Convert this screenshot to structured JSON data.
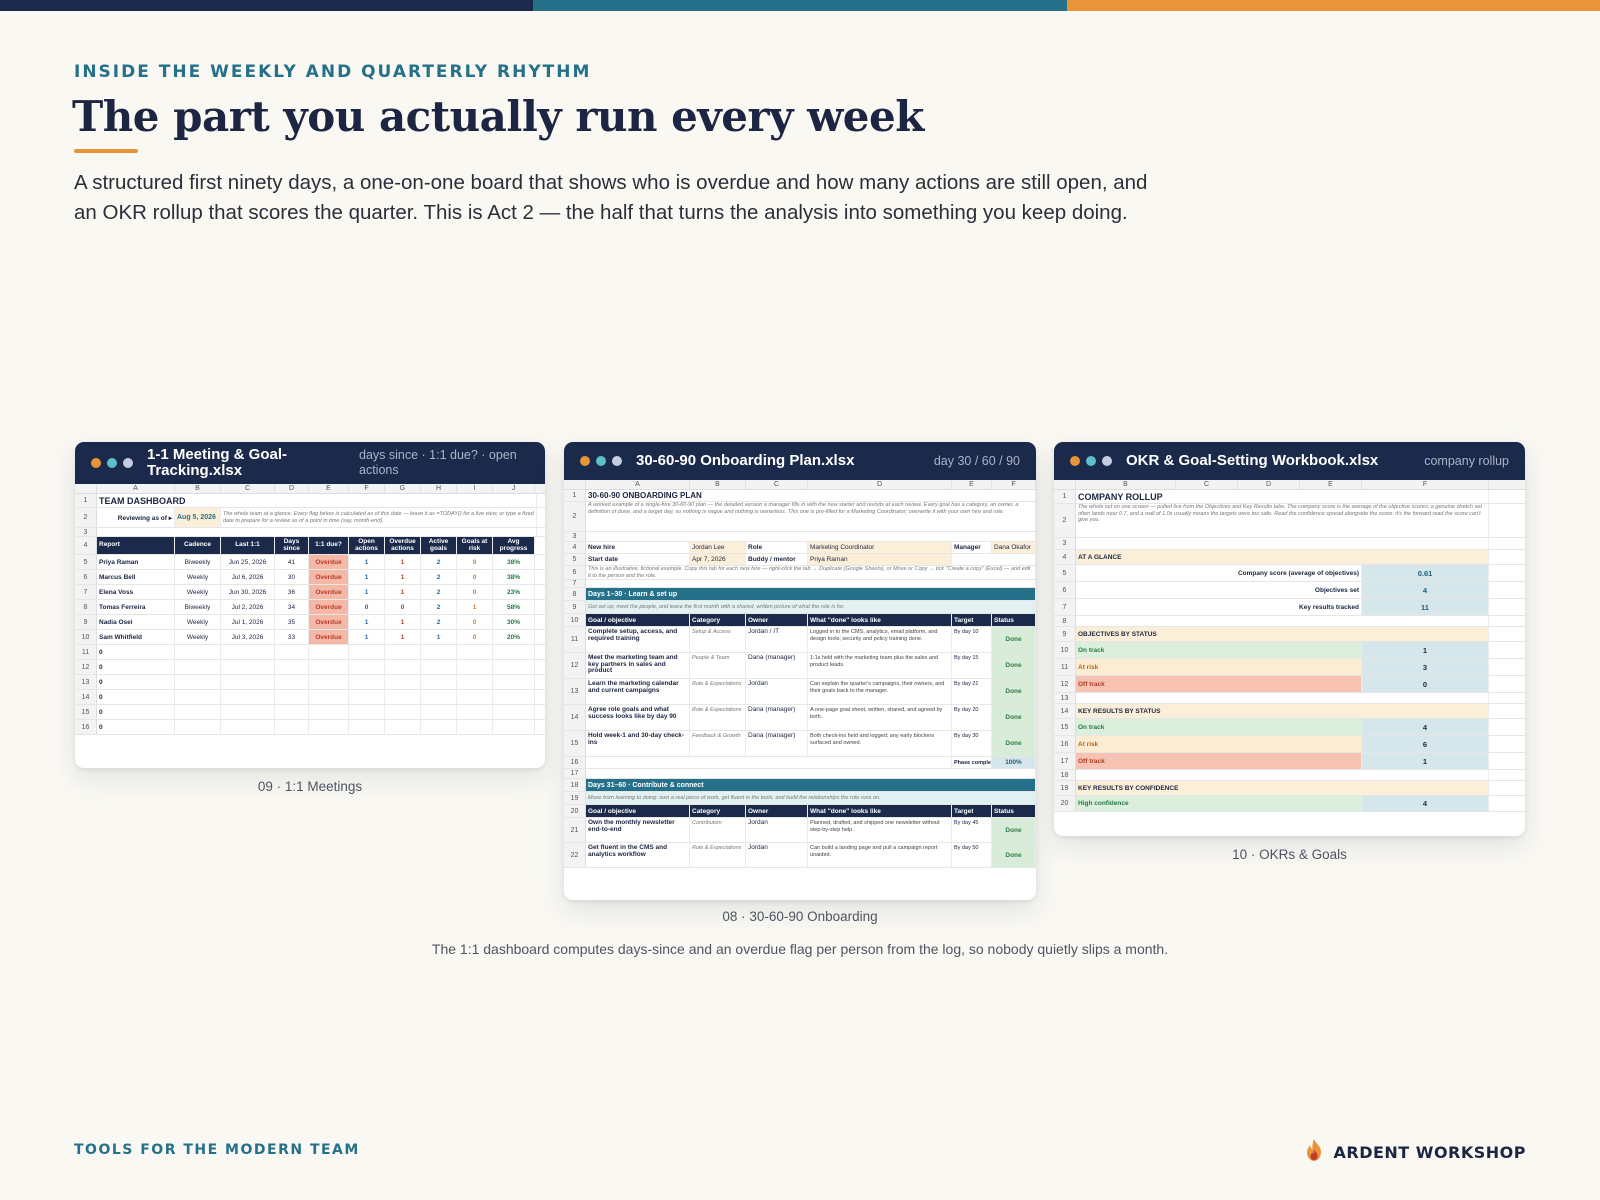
{
  "colors": {
    "navy": "#1b2a4a",
    "teal": "#26718a",
    "orange": "#e8943a",
    "overdue": "#f3b9a6",
    "done": "#d8ecd9"
  },
  "header": {
    "eyebrow": "INSIDE THE WEEKLY AND QUARTERLY RHYTHM",
    "title": "The part you actually run every week",
    "lede": "A structured first ninety days, a one-on-one board that shows who is overdue and how many actions are still open, and an OKR rollup that scores the quarter. This is Act 2 — the half that turns the analysis into something you keep doing."
  },
  "cards": {
    "meetings": {
      "title": "1-1 Meeting & Goal-Tracking.xlsx",
      "meta": "days since · 1:1 due? · open actions",
      "caption": "09 · 1:1 Meetings",
      "columns": [
        "A",
        "B",
        "C",
        "D",
        "E",
        "F",
        "G",
        "H",
        "I",
        "J"
      ],
      "sheet_title": "TEAM DASHBOARD",
      "sheet_note": "The whole team at a glance. Every flag below is calculated as of this date — leave it as =TODAY() for a live view, or type a fixed date to prepare for a review as of a point in time (say, month-end).",
      "reviewing_label": "Reviewing as of ▸",
      "reviewing_date": "Aug 5, 2026",
      "headers": [
        "Report",
        "Cadence",
        "Last 1:1",
        "Days since",
        "1:1 due?",
        "Open actions",
        "Overdue actions",
        "Active goals",
        "Goals at risk",
        "Avg progress"
      ],
      "rows": [
        [
          "Priya Raman",
          "Biweekly",
          "Jun 25, 2026",
          "41",
          "Overdue",
          "1",
          "1",
          "2",
          "0",
          "38%"
        ],
        [
          "Marcus Bell",
          "Weekly",
          "Jul 6, 2026",
          "30",
          "Overdue",
          "1",
          "1",
          "2",
          "0",
          "38%"
        ],
        [
          "Elena Voss",
          "Weekly",
          "Jun 30, 2026",
          "36",
          "Overdue",
          "1",
          "1",
          "2",
          "0",
          "23%"
        ],
        [
          "Tomas Ferreira",
          "Biweekly",
          "Jul 2, 2026",
          "34",
          "Overdue",
          "0",
          "0",
          "2",
          "1",
          "58%"
        ],
        [
          "Nadia Osei",
          "Weekly",
          "Jul 1, 2026",
          "35",
          "Overdue",
          "1",
          "1",
          "2",
          "0",
          "30%"
        ],
        [
          "Sam Whitfield",
          "Weekly",
          "Jul 3, 2026",
          "33",
          "Overdue",
          "1",
          "1",
          "1",
          "0",
          "20%"
        ]
      ],
      "empty_rows": [
        "0",
        "0",
        "0",
        "0",
        "0",
        "0"
      ]
    },
    "onboarding": {
      "title": "30-60-90 Onboarding Plan.xlsx",
      "meta": "day 30 / 60 / 90",
      "caption": "08 · 30-60-90 Onboarding",
      "columns": [
        "A",
        "B",
        "C",
        "D",
        "E",
        "F"
      ],
      "sheet_title": "30-60-90 ONBOARDING PLAN",
      "sheet_note": "A worked example of a single-hire 30-60-90 plan — the detailed version a manager fills in with the new starter and revisits at each review. Every goal has a category, an owner, a definition of done, and a target day, so nothing is vague and nothing is ownerless. This one is pre-filled for a Marketing Coordinator; overwrite it with your own hire and role.",
      "new_hire_label": "New hire",
      "new_hire": "Jordan Lee",
      "role_label": "Role",
      "role": "Marketing Coordinator",
      "manager_label": "Manager",
      "manager": "Dana Okafor",
      "start_label": "Start date",
      "start": "Apr 7, 2026",
      "buddy_label": "Buddy / mentor",
      "buddy": "Priya Raman",
      "example_note": "This is an illustrative, fictional example. Copy this tab for each new hire — right-click the tab → Duplicate (Google Sheets), or Move or Copy → tick \"Create a copy\" (Excel) — and edit it to the person and the role.",
      "phase1": "Days 1–30 · Learn & set up",
      "phase1_note": "Get set up, meet the people, and leave the first month with a shared, written picture of what the role is for.",
      "headers": [
        "Goal / objective",
        "Category",
        "Owner",
        "What \"done\" looks like",
        "Target",
        "Status"
      ],
      "goals1": [
        [
          "Complete setup, access, and required training",
          "Setup & Access",
          "Jordan / IT",
          "Logged in to the CMS, analytics, email platform, and design tools; security and policy training done.",
          "By day 10",
          "Done"
        ],
        [
          "Meet the marketing team and key partners in sales and product",
          "People & Team",
          "Dana (manager)",
          "1:1s held with the marketing team plus the sales and product leads.",
          "By day 15",
          "Done"
        ],
        [
          "Learn the marketing calendar and current campaigns",
          "Role & Expectations",
          "Jordan",
          "Can explain the quarter's campaigns, their owners, and their goals back to the manager.",
          "By day 21",
          "Done"
        ],
        [
          "Agree role goals and what success looks like by day 90",
          "Role & Expectations",
          "Dana (manager)",
          "A one-page goal sheet, written, shared, and agreed by both.",
          "By day 20",
          "Done"
        ],
        [
          "Hold week-1 and 30-day check-ins",
          "Feedback & Growth",
          "Dana (manager)",
          "Both check-ins held and logged; any early blockers surfaced and owned.",
          "By day 30",
          "Done"
        ]
      ],
      "phase_complete_label": "Phase complete →",
      "phase_complete": "100%",
      "phase2": "Days 31–60 · Contribute & connect",
      "phase2_note": "Move from learning to doing: own a real piece of work, get fluent in the tools, and build the relationships the role runs on.",
      "goals2": [
        [
          "Own the monthly newsletter end-to-end",
          "Contribution",
          "Jordan",
          "Planned, drafted, and shipped one newsletter without step-by-step help.",
          "By day 45",
          "Done"
        ],
        [
          "Get fluent in the CMS and analytics workflow",
          "Role & Expectations",
          "Jordan",
          "Can build a landing page and pull a campaign report unaided.",
          "By day 50",
          "Done"
        ]
      ]
    },
    "okr": {
      "title": "OKR & Goal-Setting Workbook.xlsx",
      "meta": "company rollup",
      "caption": "10 · OKRs & Goals",
      "columns": [
        "B",
        "C",
        "D",
        "E",
        "F"
      ],
      "sheet_title": "COMPANY ROLLUP",
      "sheet_note": "The whole set on one screen — pulled live from the Objectives and Key Results tabs. The company score is the average of the objective scores; a genuine stretch set often lands near 0.7, and a wall of 1.0s usually means the targets were too safe. Read the confidence spread alongside the score: it's the forward read the score can't give you.",
      "at_a_glance": "AT A GLANCE",
      "glance": [
        {
          "label": "Company score (average of objectives)",
          "value": "0.61"
        },
        {
          "label": "Objectives set",
          "value": "4"
        },
        {
          "label": "Key results tracked",
          "value": "11"
        }
      ],
      "obj_status": "OBJECTIVES BY STATUS",
      "obj_rows": [
        {
          "label": "On track",
          "value": "1"
        },
        {
          "label": "At risk",
          "value": "3"
        },
        {
          "label": "Off track",
          "value": "0"
        }
      ],
      "kr_status": "KEY RESULTS BY STATUS",
      "kr_rows": [
        {
          "label": "On track",
          "value": "4"
        },
        {
          "label": "At risk",
          "value": "6"
        },
        {
          "label": "Off track",
          "value": "1"
        }
      ],
      "conf": "KEY RESULTS BY CONFIDENCE",
      "conf_rows": [
        {
          "label": "High confidence",
          "value": "4"
        }
      ]
    }
  },
  "footnote": "The 1:1 dashboard computes days-since and an overdue flag per person from the log, so nobody quietly slips a month.",
  "footer": {
    "left": "TOOLS FOR THE MODERN TEAM",
    "brand": "ARDENT WORKSHOP",
    "brand_icon": "flame-icon"
  }
}
